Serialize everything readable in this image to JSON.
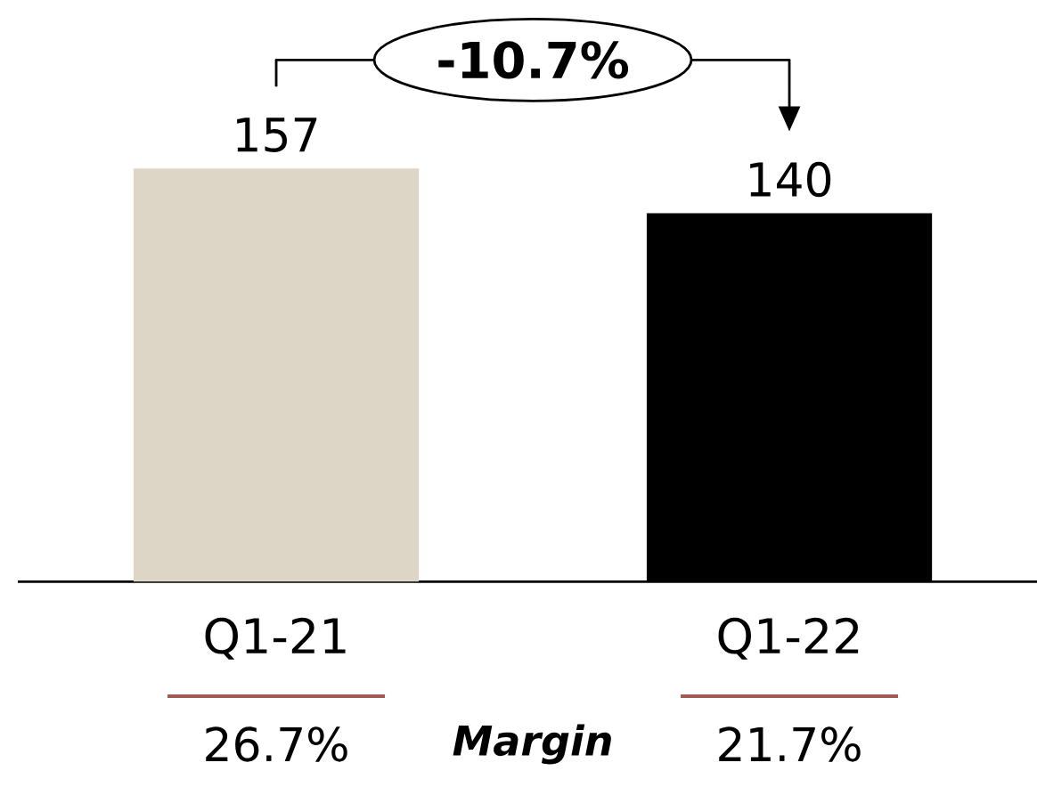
{
  "chart_data": {
    "type": "bar",
    "categories": [
      "Q1-21",
      "Q1-22"
    ],
    "values": [
      157,
      140
    ],
    "colors": [
      "#ddd6c7",
      "#000000"
    ],
    "data_labels": true,
    "annotations": [
      "-10.7%",
      "26.7%",
      "Margin",
      "21.7%"
    ]
  }
}
